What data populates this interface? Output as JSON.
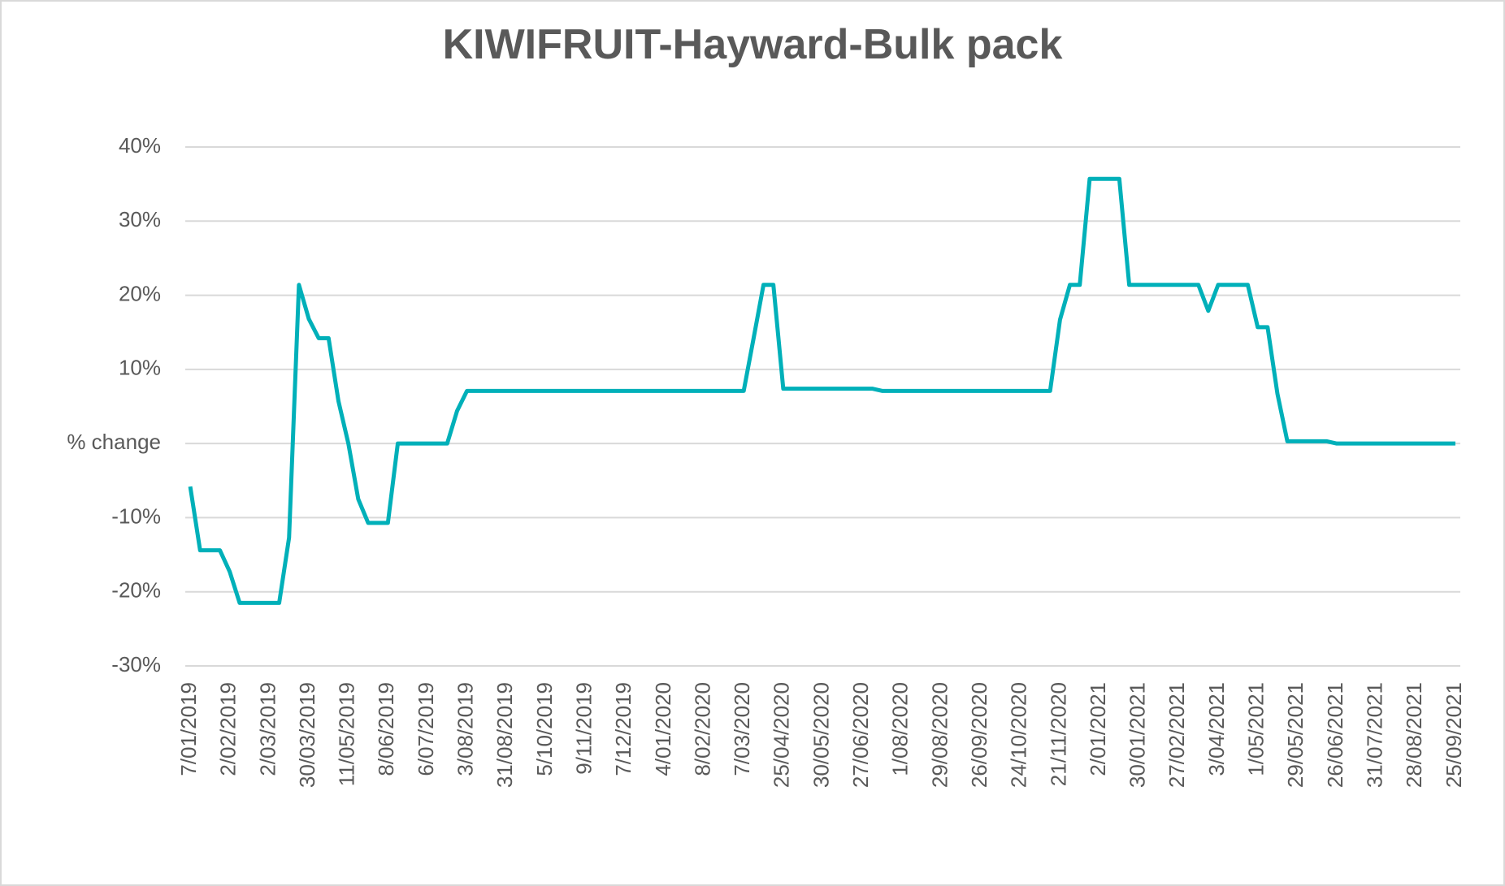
{
  "chart_data": {
    "type": "line",
    "title": "KIWIFRUIT-Hayward-Bulk pack",
    "categories": [
      "7/01/2019",
      null,
      null,
      null,
      "2/02/2019",
      null,
      null,
      null,
      "2/03/2019",
      null,
      null,
      null,
      "30/03/2019",
      null,
      null,
      null,
      "11/05/2019",
      null,
      null,
      null,
      "8/06/2019",
      null,
      null,
      null,
      "6/07/2019",
      null,
      null,
      null,
      "3/08/2019",
      null,
      null,
      null,
      "31/08/2019",
      null,
      null,
      null,
      "5/10/2019",
      null,
      null,
      null,
      "9/11/2019",
      null,
      null,
      null,
      "7/12/2019",
      null,
      null,
      null,
      "4/01/2020",
      null,
      null,
      null,
      "8/02/2020",
      null,
      null,
      null,
      "7/03/2020",
      null,
      null,
      null,
      "25/04/2020",
      null,
      null,
      null,
      "30/05/2020",
      null,
      null,
      null,
      "27/06/2020",
      null,
      null,
      null,
      "1/08/2020",
      null,
      null,
      null,
      "29/08/2020",
      null,
      null,
      null,
      "26/09/2020",
      null,
      null,
      null,
      "24/10/2020",
      null,
      null,
      null,
      "21/11/2020",
      null,
      null,
      null,
      "2/01/2021",
      null,
      null,
      null,
      "30/01/2021",
      null,
      null,
      null,
      "27/02/2021",
      null,
      null,
      null,
      "3/04/2021",
      null,
      null,
      null,
      "1/05/2021",
      null,
      null,
      null,
      "29/05/2021",
      null,
      null,
      null,
      "26/06/2021",
      null,
      null,
      null,
      "31/07/2021",
      null,
      null,
      null,
      "28/08/2021",
      null,
      null,
      null,
      "25/09/2021"
    ],
    "values": [
      -5.8,
      -14.4,
      -14.4,
      -14.4,
      -17.3,
      -21.5,
      -21.5,
      -21.5,
      -21.5,
      -21.5,
      -12.7,
      21.4,
      16.8,
      14.2,
      14.2,
      5.7,
      0,
      -7.5,
      -10.7,
      -10.7,
      -10.7,
      0,
      0,
      0,
      0,
      0,
      0,
      4.4,
      7.1,
      7.1,
      7.1,
      7.1,
      7.1,
      7.1,
      7.1,
      7.1,
      7.1,
      7.1,
      7.1,
      7.1,
      7.1,
      7.1,
      7.1,
      7.1,
      7.1,
      7.1,
      7.1,
      7.1,
      7.1,
      7.1,
      7.1,
      7.1,
      7.1,
      7.1,
      7.1,
      7.1,
      7.1,
      14.2,
      21.4,
      21.4,
      7.4,
      7.4,
      7.4,
      7.4,
      7.4,
      7.4,
      7.4,
      7.4,
      7.4,
      7.4,
      7.1,
      7.1,
      7.1,
      7.1,
      7.1,
      7.1,
      7.1,
      7.1,
      7.1,
      7.1,
      7.1,
      7.1,
      7.1,
      7.1,
      7.1,
      7.1,
      7.1,
      7.1,
      16.7,
      21.4,
      21.4,
      35.7,
      35.7,
      35.7,
      35.7,
      21.4,
      21.4,
      21.4,
      21.4,
      21.4,
      21.4,
      21.4,
      21.4,
      17.9,
      21.4,
      21.4,
      21.4,
      21.4,
      15.7,
      15.7,
      6.7,
      0.3,
      0.3,
      0.3,
      0.3,
      0.3,
      0,
      0,
      0,
      0,
      0,
      0,
      0,
      0,
      0,
      0,
      0,
      0,
      0
    ],
    "color": "#00b0b9",
    "ylim": [
      -30,
      40
    ],
    "yticks": [
      {
        "value": -30,
        "label": "-30%"
      },
      {
        "value": -20,
        "label": "-20%"
      },
      {
        "value": -10,
        "label": "-10%"
      },
      {
        "value": 0,
        "label": "% change"
      },
      {
        "value": 10,
        "label": "10%"
      },
      {
        "value": 20,
        "label": "20%"
      },
      {
        "value": 30,
        "label": "30%"
      },
      {
        "value": 40,
        "label": "40%"
      }
    ],
    "grid": true
  }
}
